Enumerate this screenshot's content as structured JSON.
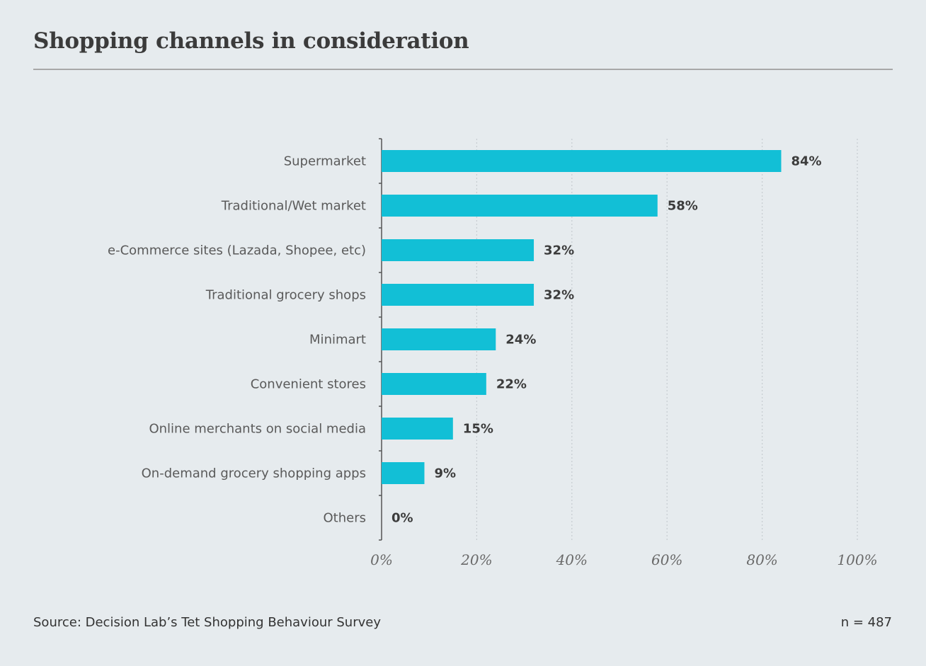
{
  "header": {
    "title": "Shopping channels in consideration"
  },
  "footer": {
    "source": "Source: Decision Lab’s Tet Shopping Behaviour Survey",
    "sample": "n = 487"
  },
  "colors": {
    "bar": "#12bfd6",
    "background": "#e6ebee",
    "grid": "#c6ccd0",
    "axis": "#555555"
  },
  "chart_data": {
    "type": "bar",
    "orientation": "horizontal",
    "title": "Shopping channels in consideration",
    "categories": [
      "Supermarket",
      "Traditional/Wet market",
      "e-Commerce sites (Lazada, Shopee, etc)",
      "Traditional grocery shops",
      "Minimart",
      "Convenient stores",
      "Online merchants on social media",
      "On-demand grocery shopping apps",
      "Others"
    ],
    "values": [
      84,
      58,
      32,
      32,
      24,
      22,
      15,
      9,
      0
    ],
    "value_labels": [
      "84%",
      "58%",
      "32%",
      "32%",
      "24%",
      "22%",
      "15%",
      "9%",
      "0%"
    ],
    "xlim": [
      0,
      100
    ],
    "x_ticks": [
      0,
      20,
      40,
      60,
      80,
      100
    ],
    "x_tick_labels": [
      "0%",
      "20%",
      "40%",
      "60%",
      "80%",
      "100%"
    ],
    "grid": "vertical dotted",
    "legend": "none"
  }
}
